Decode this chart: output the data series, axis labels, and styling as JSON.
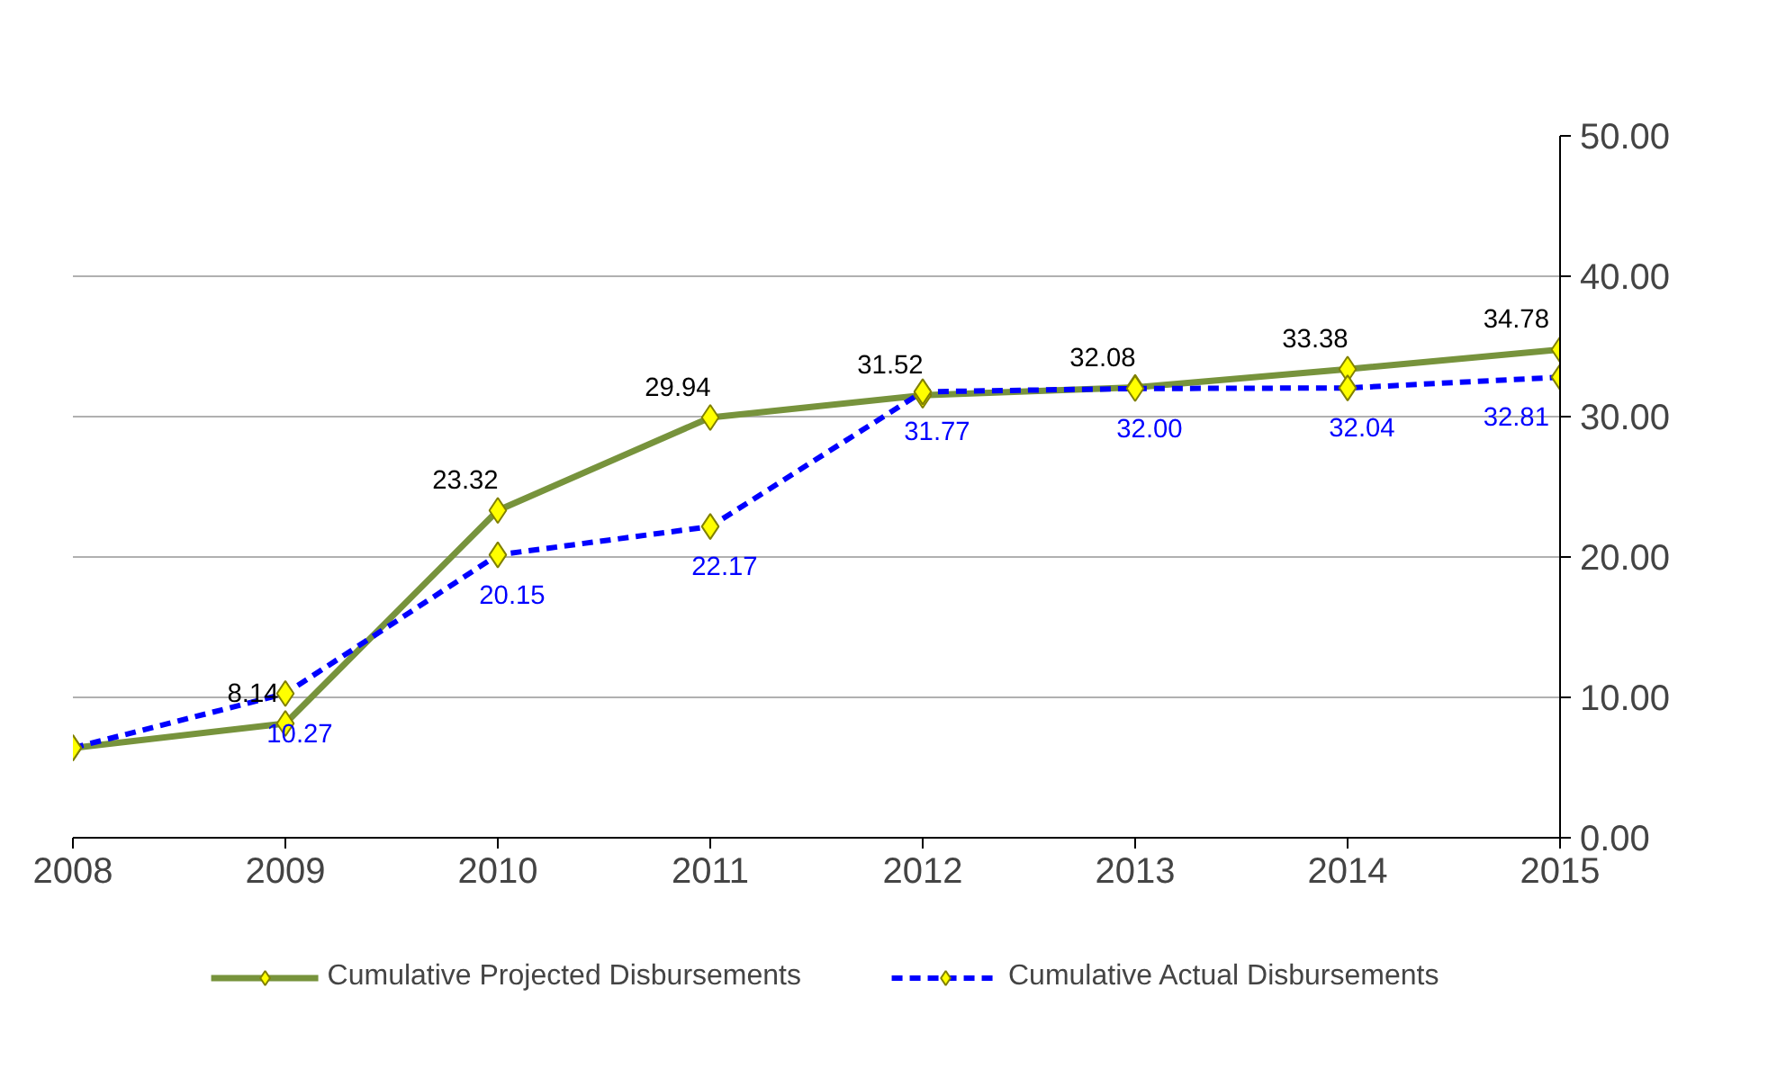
{
  "chart_data": {
    "type": "line",
    "x": [
      2008,
      2009,
      2010,
      2011,
      2012,
      2013,
      2014,
      2015
    ],
    "series": [
      {
        "name": "Cumulative Projected Disbursements",
        "color": "#77933c",
        "line_style": "solid",
        "values": [
          6.4,
          8.14,
          23.32,
          29.94,
          31.52,
          32.08,
          33.38,
          34.78
        ],
        "value_labels": [
          null,
          "8.14",
          "23.32",
          "29.94",
          "31.52",
          "32.08",
          "33.38",
          "34.78"
        ]
      },
      {
        "name": "Cumulative Actual Disbursements",
        "color": "#0000ff",
        "line_style": "dashed",
        "values": [
          6.4,
          10.27,
          20.15,
          22.17,
          31.77,
          32.0,
          32.04,
          32.81
        ],
        "value_labels": [
          null,
          "10.27",
          "20.15",
          "22.17",
          "31.77",
          "32.00",
          "32.04",
          "32.81"
        ]
      }
    ],
    "xlim": [
      2008,
      2015
    ],
    "xticks": [
      2008,
      2009,
      2010,
      2011,
      2012,
      2013,
      2014,
      2015
    ],
    "ylim": [
      0,
      50
    ],
    "yticks": [
      {
        "value": 0,
        "label": "0.00"
      },
      {
        "value": 10,
        "label": "10.00"
      },
      {
        "value": 20,
        "label": "20.00"
      },
      {
        "value": 30,
        "label": "30.00"
      },
      {
        "value": 40,
        "label": "40.00"
      },
      {
        "value": 50,
        "label": "50.00"
      }
    ],
    "grid": "y",
    "legend": "bottom",
    "marker": "diamond"
  }
}
